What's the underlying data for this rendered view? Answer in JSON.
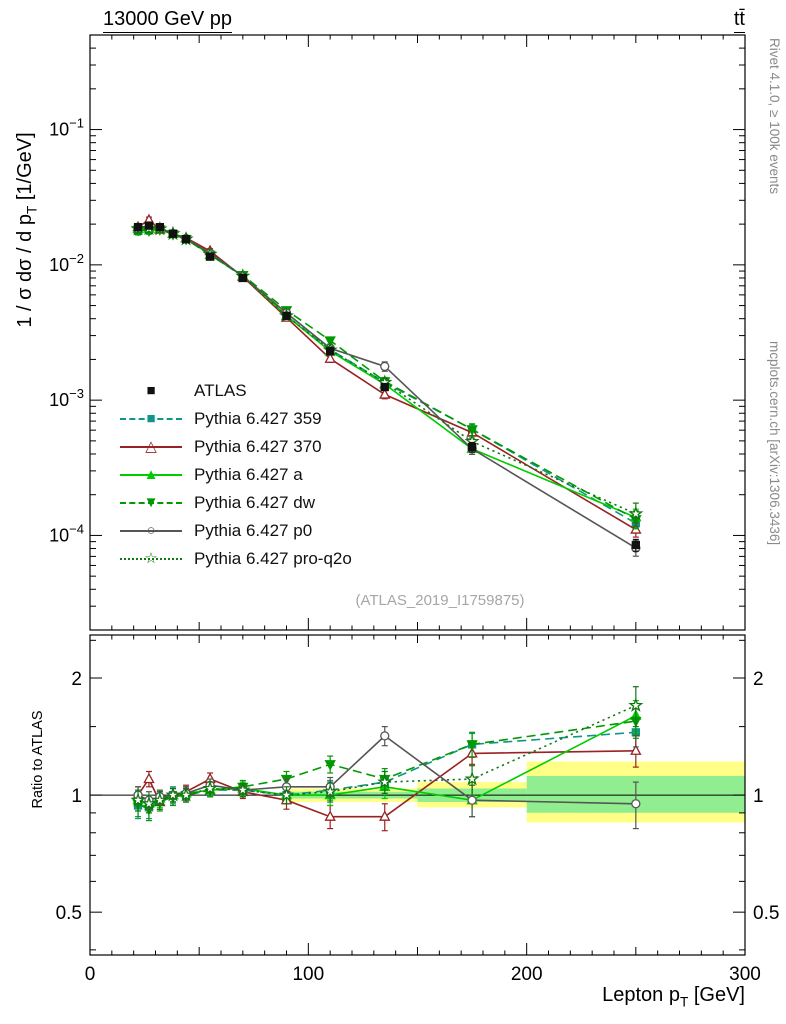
{
  "page": {
    "rivet_label": "Rivet 4.1.0, ≥ 100k events",
    "mcplots_label": "mcplots.cern.ch [arXiv:1306.3436]",
    "watermark": "(ATLAS_2019_I1759875)"
  },
  "chart_data": {
    "type": "line",
    "title_left": "13000 GeV pp",
    "title_right": "tt̄",
    "xlabel_pre": "Lepton p",
    "xlabel_sub": "T",
    "xlabel_post": " [GeV]",
    "ylabel_main_pre": "1 / σ dσ / d p",
    "ylabel_main_sub": "T",
    "ylabel_main_post": " [1/GeV]",
    "ylabel_ratio": "Ratio to ATLAS",
    "legend_position": "inside-left",
    "xlim": [
      0,
      300
    ],
    "x_major_ticks": [
      0,
      100,
      200,
      300
    ],
    "x_tick_labels": [
      "0",
      "100",
      "200",
      "300"
    ],
    "main_axis": {
      "log": true,
      "lim": [
        2e-05,
        0.5
      ],
      "decade_exponents": [
        -4,
        -3,
        -2,
        -1
      ]
    },
    "ratio_axis": {
      "log": true,
      "lim": [
        0.388,
        2.58
      ],
      "major": [
        0.5,
        1,
        2
      ],
      "labels": [
        "0.5",
        "1",
        "2"
      ],
      "minor": [
        0.4,
        0.6,
        0.7,
        0.8,
        0.9,
        1.5,
        2.5
      ]
    },
    "x": [
      22,
      27,
      32,
      38,
      44,
      55,
      70,
      90,
      110,
      135,
      175,
      250
    ],
    "atlas": {
      "label": "ATLAS",
      "color": "#111111",
      "marker": "square",
      "glyph": "■",
      "y": [
        0.019,
        0.0195,
        0.019,
        0.017,
        0.0155,
        0.0115,
        0.008,
        0.0042,
        0.0023,
        0.00125,
        0.00045,
        8.5e-05
      ],
      "err_rel": [
        0.03,
        0.03,
        0.03,
        0.03,
        0.03,
        0.03,
        0.03,
        0.04,
        0.04,
        0.05,
        0.08,
        0.1
      ]
    },
    "mc_series": [
      {
        "label": "Pythia 6.427 359",
        "color": "#10958a",
        "line": "dashed",
        "marker": "square",
        "filled": true,
        "glyph": "■",
        "ratio": [
          0.94,
          0.93,
          0.97,
          1.0,
          1.0,
          1.03,
          1.03,
          1.0,
          1.03,
          1.08,
          1.35,
          1.45
        ],
        "ratio_err": [
          0.07,
          0.06,
          0.05,
          0.05,
          0.04,
          0.04,
          0.04,
          0.05,
          0.06,
          0.07,
          0.09,
          0.12
        ]
      },
      {
        "label": "Pythia 6.427 370",
        "color": "#992222",
        "line": "solid",
        "marker": "triangle-up",
        "filled": false,
        "glyph": "△",
        "ratio": [
          1.0,
          1.1,
          0.96,
          1.0,
          1.02,
          1.1,
          1.02,
          0.97,
          0.88,
          0.88,
          1.28,
          1.3
        ],
        "ratio_err": [
          0.05,
          0.05,
          0.04,
          0.04,
          0.04,
          0.04,
          0.04,
          0.05,
          0.06,
          0.07,
          0.09,
          0.12
        ]
      },
      {
        "label": "Pythia 6.427 a",
        "color": "#00cc00",
        "line": "solid",
        "marker": "triangle-up",
        "filled": true,
        "glyph": "▲",
        "ratio": [
          0.97,
          0.95,
          0.98,
          1.0,
          1.01,
          1.03,
          1.04,
          1.0,
          1.0,
          1.05,
          0.97,
          1.6
        ],
        "ratio_err": [
          0.06,
          0.05,
          0.05,
          0.04,
          0.04,
          0.04,
          0.04,
          0.05,
          0.06,
          0.07,
          0.09,
          0.15
        ]
      },
      {
        "label": "Pythia 6.427 dw",
        "color": "#009900",
        "line": "dashed",
        "marker": "triangle-down",
        "filled": true,
        "glyph": "▼",
        "ratio": [
          0.95,
          0.92,
          0.96,
          0.99,
          1.0,
          1.03,
          1.05,
          1.1,
          1.2,
          1.1,
          1.35,
          1.55
        ],
        "ratio_err": [
          0.07,
          0.06,
          0.05,
          0.05,
          0.04,
          0.04,
          0.04,
          0.05,
          0.06,
          0.07,
          0.1,
          0.15
        ]
      },
      {
        "label": "Pythia 6.427 p0",
        "color": "#555555",
        "line": "solid",
        "marker": "circle",
        "filled": false,
        "glyph": "○",
        "ratio": [
          1.0,
          0.97,
          0.99,
          1.0,
          1.01,
          1.06,
          1.03,
          1.05,
          1.05,
          1.42,
          0.97,
          0.95
        ],
        "ratio_err": [
          0.05,
          0.05,
          0.04,
          0.04,
          0.04,
          0.04,
          0.04,
          0.05,
          0.06,
          0.08,
          0.09,
          0.13
        ]
      },
      {
        "label": "Pythia 6.427 pro-q2o",
        "color": "#117711",
        "line": "dotted",
        "marker": "star",
        "filled": false,
        "glyph": "☆",
        "ratio": [
          0.97,
          0.95,
          0.97,
          1.0,
          1.0,
          1.04,
          1.03,
          1.0,
          1.02,
          1.08,
          1.1,
          1.7
        ],
        "ratio_err": [
          0.06,
          0.05,
          0.05,
          0.04,
          0.04,
          0.04,
          0.04,
          0.05,
          0.06,
          0.07,
          0.1,
          0.2
        ]
      }
    ],
    "bands": {
      "yellow": {
        "color": "#ffff88",
        "segments": [
          {
            "x0": 90,
            "x1": 150,
            "lo": 0.96,
            "hi": 1.04
          },
          {
            "x0": 150,
            "x1": 200,
            "lo": 0.93,
            "hi": 1.08
          },
          {
            "x0": 200,
            "x1": 300,
            "lo": 0.85,
            "hi": 1.22
          }
        ]
      },
      "green": {
        "color": "#90ee90",
        "segments": [
          {
            "x0": 90,
            "x1": 150,
            "lo": 0.98,
            "hi": 1.02
          },
          {
            "x0": 150,
            "x1": 200,
            "lo": 0.96,
            "hi": 1.04
          },
          {
            "x0": 200,
            "x1": 300,
            "lo": 0.9,
            "hi": 1.12
          }
        ]
      }
    }
  }
}
